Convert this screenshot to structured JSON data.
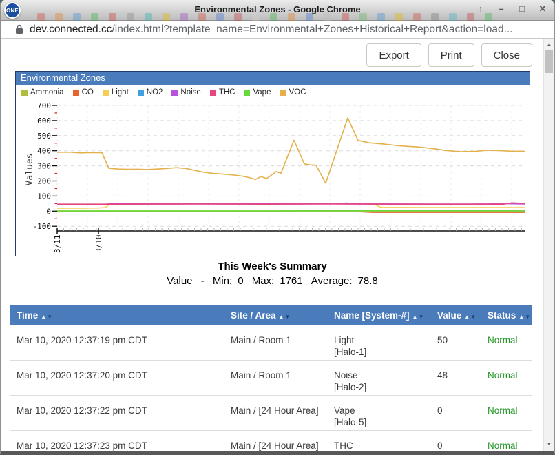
{
  "window": {
    "title": "Environmental Zones - Google Chrome",
    "logo_text": "ONE",
    "controls": [
      {
        "name": "shade",
        "glyph": "↑"
      },
      {
        "name": "minimize",
        "glyph": "–"
      },
      {
        "name": "maximize",
        "glyph": "□"
      },
      {
        "name": "close",
        "glyph": "✕"
      }
    ]
  },
  "browser": {
    "url_domain": "dev.connected.cc",
    "url_path": "/index.html?template_name=Environmental+Zones+Historical+Report&action=load..."
  },
  "toolbar": {
    "buttons": [
      {
        "label": "Export"
      },
      {
        "label": "Print"
      },
      {
        "label": "Close"
      }
    ]
  },
  "panel": {
    "title": "Environmental Zones"
  },
  "chart_data": {
    "type": "line",
    "title": "Environmental Zones",
    "ylabel": "Values",
    "ylim": [
      -100,
      700
    ],
    "yticks": [
      700,
      600,
      500,
      400,
      300,
      200,
      100,
      0,
      -100
    ],
    "xlim": [
      0,
      679
    ],
    "xticks": [
      {
        "label": "3/11",
        "x": 0
      },
      {
        "label": "3/10",
        "x": 60
      }
    ],
    "grid": true,
    "legend_position": "top-left",
    "series": [
      {
        "name": "Ammonia",
        "color": "#b2bd3f",
        "points": [
          [
            0,
            -3
          ],
          [
            340,
            -3
          ],
          [
            679,
            -3
          ]
        ]
      },
      {
        "name": "CO",
        "color": "#e8642c",
        "points": [
          [
            0,
            -4
          ],
          [
            440,
            -4
          ],
          [
            458,
            -8
          ],
          [
            679,
            -8
          ]
        ]
      },
      {
        "name": "Light",
        "color": "#f4cf54",
        "points": [
          [
            0,
            20
          ],
          [
            40,
            20
          ],
          [
            60,
            21
          ],
          [
            70,
            24
          ],
          [
            77,
            47
          ],
          [
            150,
            48
          ],
          [
            250,
            48
          ],
          [
            330,
            49
          ],
          [
            415,
            51
          ],
          [
            440,
            49
          ],
          [
            460,
            46
          ],
          [
            470,
            25
          ],
          [
            540,
            24
          ],
          [
            620,
            24
          ],
          [
            679,
            24
          ]
        ]
      },
      {
        "name": "NO2",
        "color": "#42a2e0",
        "points": [
          [
            0,
            0
          ],
          [
            679,
            0
          ]
        ]
      },
      {
        "name": "Noise",
        "color": "#b953dc",
        "points": [
          [
            0,
            44
          ],
          [
            30,
            43
          ],
          [
            60,
            43
          ],
          [
            77,
            48
          ],
          [
            150,
            48
          ],
          [
            250,
            48
          ],
          [
            350,
            48
          ],
          [
            408,
            49
          ],
          [
            420,
            54
          ],
          [
            432,
            50
          ],
          [
            470,
            48
          ],
          [
            540,
            47
          ],
          [
            600,
            47
          ],
          [
            628,
            48
          ],
          [
            640,
            52
          ],
          [
            652,
            49
          ],
          [
            679,
            47
          ]
        ]
      },
      {
        "name": "THC",
        "color": "#e84681",
        "points": [
          [
            0,
            46
          ],
          [
            100,
            46
          ],
          [
            200,
            47
          ],
          [
            300,
            46
          ],
          [
            400,
            47
          ],
          [
            500,
            46
          ],
          [
            560,
            46
          ],
          [
            620,
            46
          ],
          [
            648,
            46
          ],
          [
            660,
            55
          ],
          [
            670,
            53
          ],
          [
            679,
            50
          ]
        ]
      },
      {
        "name": "Vape",
        "color": "#67d93a",
        "points": [
          [
            0,
            2
          ],
          [
            150,
            2
          ],
          [
            300,
            2
          ],
          [
            450,
            3
          ],
          [
            679,
            3
          ]
        ]
      },
      {
        "name": "VOC",
        "color": "#e3b04a",
        "points": [
          [
            0,
            390
          ],
          [
            17,
            391
          ],
          [
            35,
            386
          ],
          [
            52,
            388
          ],
          [
            65,
            387
          ],
          [
            75,
            284
          ],
          [
            89,
            279
          ],
          [
            103,
            277
          ],
          [
            117,
            278
          ],
          [
            131,
            276
          ],
          [
            145,
            279
          ],
          [
            159,
            283
          ],
          [
            173,
            288
          ],
          [
            187,
            283
          ],
          [
            200,
            270
          ],
          [
            213,
            258
          ],
          [
            227,
            250
          ],
          [
            241,
            245
          ],
          [
            255,
            240
          ],
          [
            269,
            232
          ],
          [
            280,
            221
          ],
          [
            288,
            210
          ],
          [
            296,
            229
          ],
          [
            304,
            216
          ],
          [
            312,
            241
          ],
          [
            318,
            262
          ],
          [
            325,
            251
          ],
          [
            344,
            470
          ],
          [
            359,
            313
          ],
          [
            368,
            306
          ],
          [
            376,
            304
          ],
          [
            390,
            185
          ],
          [
            422,
            618
          ],
          [
            437,
            468
          ],
          [
            454,
            452
          ],
          [
            475,
            444
          ],
          [
            497,
            433
          ],
          [
            524,
            425
          ],
          [
            545,
            415
          ],
          [
            565,
            402
          ],
          [
            585,
            394
          ],
          [
            607,
            396
          ],
          [
            624,
            403
          ],
          [
            642,
            401
          ],
          [
            662,
            397
          ],
          [
            679,
            397
          ]
        ]
      }
    ]
  },
  "summary": {
    "title": "This Week's Summary",
    "metric_label": "Value",
    "dash": "-",
    "min_label": "Min:",
    "min_value": "0",
    "max_label": "Max:",
    "max_value": "1761",
    "avg_label": "Average:",
    "avg_value": "78.8"
  },
  "table": {
    "sort_up": "▲",
    "sort_down": "▼",
    "headers": [
      {
        "label": "Time"
      },
      {
        "label": "Site / Area"
      },
      {
        "label": "Name [System-#]"
      },
      {
        "label": "Value"
      },
      {
        "label": "Status"
      }
    ],
    "rows": [
      {
        "time": "Mar 10, 2020 12:37:19 pm CDT",
        "site": "Main / Room 1",
        "name": "Light",
        "system": "[Halo-1]",
        "value": "50",
        "status": "Normal"
      },
      {
        "time": "Mar 10, 2020 12:37:20 pm CDT",
        "site": "Main / Room 1",
        "name": "Noise",
        "system": "[Halo-2]",
        "value": "48",
        "status": "Normal"
      },
      {
        "time": "Mar 10, 2020 12:37:22 pm CDT",
        "site": "Main / [24 Hour Area]",
        "name": "Vape",
        "system": "[Halo-5]",
        "value": "0",
        "status": "Normal"
      },
      {
        "time": "Mar 10, 2020 12:37:23 pm CDT",
        "site": "Main / [24 Hour Area]",
        "name": "THC",
        "system": "",
        "value": "0",
        "status": "Normal"
      }
    ]
  },
  "scrollbar": {
    "up": "▲",
    "down": "▼"
  },
  "colors": {
    "header_blue": "#4a7cbc",
    "panel_border": "#1e3c6e",
    "status_normal_green": "#239628",
    "axis_minor_tick_red": "#cc2a2a"
  }
}
